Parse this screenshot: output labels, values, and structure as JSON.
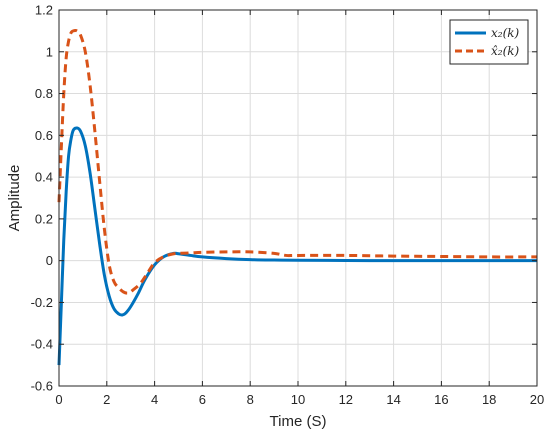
{
  "chart_data": {
    "type": "line",
    "title": "",
    "xlabel": "Time (S)",
    "ylabel": "Amplitude",
    "xlim": [
      0,
      20
    ],
    "ylim": [
      -0.6,
      1.2
    ],
    "grid": true,
    "legend_position": "top-right",
    "x_ticks": [
      "0",
      "2",
      "4",
      "6",
      "8",
      "10",
      "12",
      "14",
      "16",
      "18",
      "20"
    ],
    "y_ticks": [
      "-0.6",
      "-0.4",
      "-0.2",
      "0",
      "0.2",
      "0.4",
      "0.6",
      "0.8",
      "1",
      "1.2"
    ],
    "series": [
      {
        "name": "x₂(k)",
        "color": "#0072BD",
        "style": "solid",
        "x": [
          0,
          0.1,
          0.2,
          0.3,
          0.4,
          0.5,
          0.6,
          0.75,
          0.9,
          1.1,
          1.3,
          1.5,
          1.7,
          1.9,
          2.1,
          2.3,
          2.5,
          2.65,
          2.8,
          3.0,
          3.3,
          3.6,
          4.0,
          4.4,
          4.8,
          5.0,
          5.5,
          6,
          7,
          8,
          9,
          10,
          12,
          14,
          16,
          18,
          20
        ],
        "y": [
          -0.5,
          -0.2,
          0.1,
          0.33,
          0.5,
          0.58,
          0.625,
          0.635,
          0.62,
          0.55,
          0.42,
          0.25,
          0.08,
          -0.07,
          -0.17,
          -0.23,
          -0.255,
          -0.26,
          -0.25,
          -0.22,
          -0.16,
          -0.09,
          -0.02,
          0.02,
          0.035,
          0.033,
          0.025,
          0.018,
          0.01,
          0.005,
          0.003,
          0.002,
          0.001,
          0.0,
          0.0,
          0.0,
          0.0
        ]
      },
      {
        "name": "x̂₂(k)",
        "color": "#D95319",
        "style": "dashed",
        "x": [
          0,
          0.1,
          0.2,
          0.3,
          0.4,
          0.5,
          0.6,
          0.75,
          0.9,
          1.1,
          1.3,
          1.5,
          1.7,
          1.9,
          2.1,
          2.3,
          2.5,
          2.7,
          2.9,
          3.1,
          3.4,
          3.7,
          4.0,
          4.4,
          4.8,
          5.0,
          5.5,
          6,
          7,
          8,
          9,
          9.5,
          10,
          12,
          14,
          16,
          18,
          20
        ],
        "y": [
          0.28,
          0.55,
          0.8,
          0.97,
          1.05,
          1.09,
          1.1,
          1.1,
          1.08,
          1.0,
          0.84,
          0.62,
          0.38,
          0.15,
          -0.02,
          -0.1,
          -0.13,
          -0.15,
          -0.155,
          -0.14,
          -0.11,
          -0.06,
          -0.01,
          0.02,
          0.033,
          0.035,
          0.037,
          0.04,
          0.042,
          0.042,
          0.035,
          0.025,
          0.025,
          0.025,
          0.022,
          0.02,
          0.018,
          0.018
        ]
      }
    ]
  }
}
